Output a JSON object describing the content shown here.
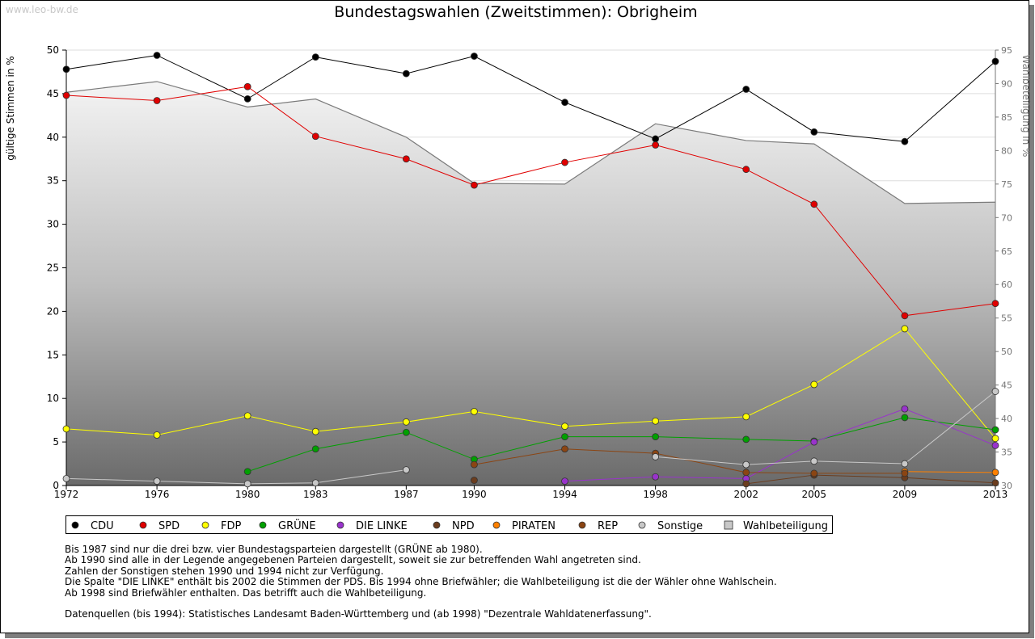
{
  "watermark": "www.leo-bw.de",
  "title": "Bundestagswahlen (Zweitstimmen): Obrigheim",
  "notes": [
    "Bis 1987 sind nur die drei bzw. vier Bundestagsparteien dargestellt (GRÜNE ab 1980).",
    "Ab 1990 sind alle in der Legende angegebenen Parteien dargestellt, soweit sie zur betreffenden Wahl angetreten sind.",
    "Zahlen der Sonstigen stehen 1990 und 1994 nicht zur Verfügung.",
    "Die Spalte \"DIE LINKE\" enthält bis 2002 die Stimmen der PDS. Bis 1994 ohne Briefwähler; die Wahlbeteiligung ist die der Wähler ohne Wahlschein.",
    "Ab 1998 sind Briefwähler enthalten. Das betrifft auch die Wahlbeteiligung."
  ],
  "source": "Datenquellen (bis 1994): Statistisches Landesamt Baden-Württemberg und (ab 1998) \"Dezentrale Wahldatenerfassung\".",
  "chart_data": {
    "type": "line",
    "title": "Bundestagswahlen (Zweitstimmen): Obrigheim",
    "ylabel": "gültige Stimmen in %",
    "y2label": "Wahlbeteiligung in %",
    "xlabel": "",
    "x": [
      1972,
      1976,
      1980,
      1983,
      1987,
      1990,
      1994,
      1998,
      2002,
      2005,
      2009,
      2013
    ],
    "x_ticks": [
      "1972",
      "1976",
      "1980",
      "1983",
      "1987",
      "1990",
      "1994",
      "1998",
      "2002",
      "2005",
      "2009",
      "2013"
    ],
    "ylim": [
      0,
      50
    ],
    "y_ticks": [
      "0",
      "5",
      "10",
      "15",
      "20",
      "25",
      "30",
      "35",
      "40",
      "45",
      "50"
    ],
    "y2lim": [
      30,
      95
    ],
    "y2_ticks": [
      "30",
      "35",
      "40",
      "45",
      "50",
      "55",
      "60",
      "65",
      "70",
      "75",
      "80",
      "85",
      "90",
      "95"
    ],
    "grid": "horizontal",
    "legend_position": "bottom",
    "series": [
      {
        "name": "CDU",
        "color": "#000000",
        "values": [
          47.8,
          49.4,
          44.4,
          49.2,
          47.3,
          49.3,
          44.0,
          39.8,
          45.5,
          40.6,
          39.5,
          48.7
        ]
      },
      {
        "name": "SPD",
        "color": "#e00000",
        "values": [
          44.8,
          44.2,
          45.8,
          40.1,
          37.5,
          34.5,
          37.1,
          39.1,
          36.3,
          32.3,
          19.5,
          20.9
        ]
      },
      {
        "name": "FDP",
        "color": "#ffff00",
        "values": [
          6.5,
          5.8,
          8.0,
          6.2,
          7.3,
          8.5,
          6.8,
          7.4,
          7.9,
          11.6,
          18.0,
          5.4
        ]
      },
      {
        "name": "GRÜNE",
        "color": "#00a000",
        "values": [
          null,
          null,
          1.6,
          4.2,
          6.1,
          3.0,
          5.6,
          5.6,
          5.3,
          5.1,
          7.8,
          6.4
        ]
      },
      {
        "name": "DIE LINKE",
        "color": "#9933cc",
        "values": [
          null,
          null,
          null,
          null,
          null,
          null,
          0.5,
          1.0,
          0.8,
          5.0,
          8.8,
          4.6
        ]
      },
      {
        "name": "NPD",
        "color": "#6b3d1e",
        "values": [
          null,
          null,
          null,
          null,
          null,
          0.6,
          null,
          null,
          0.2,
          1.2,
          0.9,
          0.3
        ]
      },
      {
        "name": "PIRATEN",
        "color": "#ff8000",
        "values": [
          null,
          null,
          null,
          null,
          null,
          null,
          null,
          null,
          null,
          null,
          1.6,
          1.5
        ]
      },
      {
        "name": "REP",
        "color": "#8b4513",
        "values": [
          null,
          null,
          null,
          null,
          null,
          2.4,
          4.2,
          3.7,
          1.5,
          1.4,
          1.4,
          null
        ]
      },
      {
        "name": "Sonstige",
        "color": "#c8c8c8",
        "values": [
          0.8,
          0.5,
          0.2,
          0.3,
          1.8,
          null,
          null,
          3.3,
          2.4,
          2.8,
          2.5,
          10.8
        ]
      }
    ],
    "turnout": {
      "name": "Wahlbeteiligung",
      "axis": "right",
      "values": [
        88.7,
        90.3,
        86.5,
        87.7,
        82.0,
        75.1,
        75.0,
        84.0,
        81.5,
        81.0,
        72.1,
        72.3
      ]
    }
  }
}
